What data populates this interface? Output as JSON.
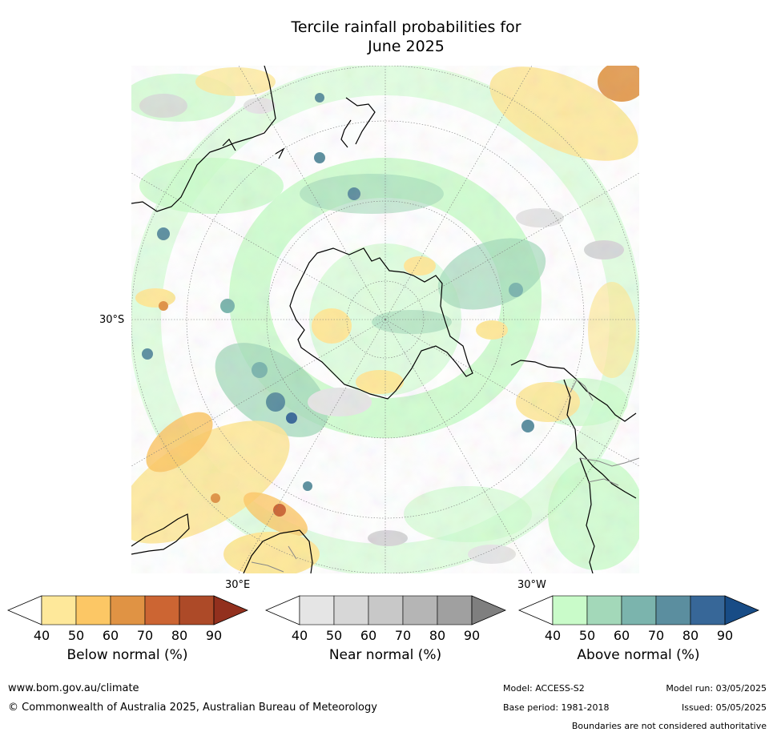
{
  "title": {
    "line1": "Tercile rainfall probabilities for",
    "line2": "June 2025"
  },
  "map": {
    "lat_label": "30°S",
    "lon_label_east": "30°E",
    "lon_label_west": "30°W",
    "colors": {
      "land_edge": "#000000",
      "border": "#888888",
      "graticule": "#7a7a7a"
    }
  },
  "colorbars": {
    "below": {
      "label": "Below normal (%)",
      "ticks": [
        "40",
        "50",
        "60",
        "70",
        "80",
        "90"
      ],
      "colors": [
        "#ffffff",
        "#fee89a",
        "#fcc765",
        "#e09344",
        "#cc6533",
        "#ad4a28",
        "#92301e"
      ]
    },
    "near": {
      "label": "Near normal (%)",
      "ticks": [
        "40",
        "50",
        "60",
        "70",
        "80",
        "90"
      ],
      "colors": [
        "#ffffff",
        "#e5e5e5",
        "#d7d7d7",
        "#c8c8c8",
        "#b5b5b5",
        "#a0a0a0",
        "#7f7f7f"
      ]
    },
    "above": {
      "label": "Above normal (%)",
      "ticks": [
        "40",
        "50",
        "60",
        "70",
        "80",
        "90"
      ],
      "colors": [
        "#ffffff",
        "#c9fbc9",
        "#a3d8b9",
        "#7bb4ad",
        "#5b8e9f",
        "#376798",
        "#184c86"
      ]
    }
  },
  "footer": {
    "url": "www.bom.gov.au/climate",
    "copyright": "© Commonwealth of Australia 2025, Australian Bureau of Meteorology",
    "model": "Model: ACCESS-S2",
    "base_period": "Base period: 1981-2018",
    "model_run": "Model run: 03/05/2025",
    "issued": "Issued: 05/05/2025",
    "boundaries": "Boundaries are not considered authoritative"
  }
}
